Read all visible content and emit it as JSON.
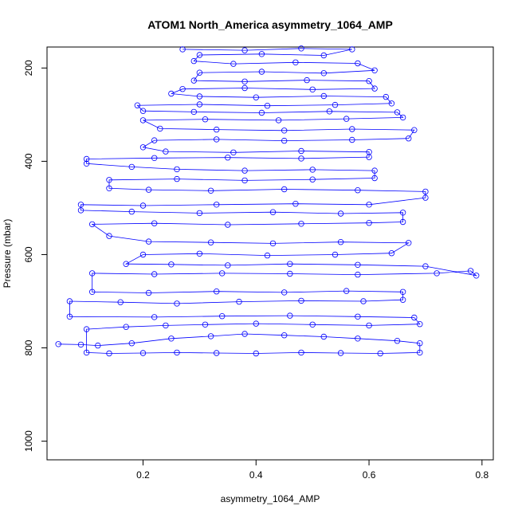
{
  "chart_data": {
    "type": "scatter",
    "title": "ATOM1 North_America asymmetry_1064_AMP",
    "xlabel": "asymmetry_1064_AMP",
    "ylabel": "Pressure (mbar)",
    "xlim": [
      0.03,
      0.82
    ],
    "ylim": [
      1040,
      155
    ],
    "y_reversed": true,
    "x_ticks": [
      0.2,
      0.4,
      0.6,
      0.8
    ],
    "x_tick_labels": [
      "0.2",
      "0.4",
      "0.6",
      "0.8"
    ],
    "y_ticks": [
      200,
      400,
      600,
      800,
      1000
    ],
    "y_tick_labels": [
      "200",
      "400",
      "600",
      "800",
      "1000"
    ],
    "grid": false,
    "legend": "none",
    "color": "#0000ff",
    "marker": "open-circle",
    "series": [
      {
        "points": [
          [
            0.05,
            792
          ],
          [
            0.09,
            793
          ],
          [
            0.12,
            795
          ],
          [
            0.18,
            790
          ],
          [
            0.25,
            780
          ],
          [
            0.32,
            775
          ],
          [
            0.38,
            770
          ],
          [
            0.45,
            773
          ],
          [
            0.52,
            776
          ],
          [
            0.58,
            780
          ],
          [
            0.65,
            785
          ],
          [
            0.69,
            790
          ],
          [
            0.69,
            810
          ],
          [
            0.62,
            812
          ],
          [
            0.55,
            811
          ],
          [
            0.48,
            810
          ],
          [
            0.4,
            812
          ],
          [
            0.33,
            811
          ],
          [
            0.26,
            810
          ],
          [
            0.2,
            811
          ],
          [
            0.14,
            812
          ],
          [
            0.1,
            810
          ],
          [
            0.1,
            760
          ],
          [
            0.17,
            755
          ],
          [
            0.24,
            752
          ],
          [
            0.31,
            750
          ],
          [
            0.4,
            748
          ],
          [
            0.5,
            750
          ],
          [
            0.6,
            752
          ],
          [
            0.69,
            749
          ],
          [
            0.68,
            735
          ],
          [
            0.58,
            733
          ],
          [
            0.46,
            731
          ],
          [
            0.34,
            732
          ],
          [
            0.22,
            734
          ],
          [
            0.07,
            733
          ],
          [
            0.07,
            700
          ],
          [
            0.16,
            702
          ],
          [
            0.26,
            705
          ],
          [
            0.37,
            701
          ],
          [
            0.48,
            699
          ],
          [
            0.59,
            700
          ],
          [
            0.66,
            697
          ],
          [
            0.66,
            680
          ],
          [
            0.56,
            678
          ],
          [
            0.45,
            681
          ],
          [
            0.33,
            679
          ],
          [
            0.21,
            682
          ],
          [
            0.11,
            680
          ],
          [
            0.11,
            640
          ],
          [
            0.22,
            642
          ],
          [
            0.34,
            640
          ],
          [
            0.46,
            641
          ],
          [
            0.58,
            643
          ],
          [
            0.72,
            640
          ],
          [
            0.78,
            635
          ],
          [
            0.79,
            645
          ],
          [
            0.7,
            625
          ],
          [
            0.58,
            622
          ],
          [
            0.46,
            620
          ],
          [
            0.35,
            623
          ],
          [
            0.25,
            621
          ],
          [
            0.17,
            620
          ],
          [
            0.2,
            600
          ],
          [
            0.3,
            598
          ],
          [
            0.42,
            602
          ],
          [
            0.54,
            600
          ],
          [
            0.64,
            597
          ],
          [
            0.67,
            575
          ],
          [
            0.55,
            573
          ],
          [
            0.43,
            576
          ],
          [
            0.32,
            574
          ],
          [
            0.21,
            572
          ],
          [
            0.14,
            560
          ],
          [
            0.11,
            535
          ],
          [
            0.22,
            533
          ],
          [
            0.35,
            536
          ],
          [
            0.48,
            534
          ],
          [
            0.6,
            532
          ],
          [
            0.66,
            530
          ],
          [
            0.66,
            510
          ],
          [
            0.55,
            512
          ],
          [
            0.43,
            509
          ],
          [
            0.3,
            511
          ],
          [
            0.18,
            508
          ],
          [
            0.09,
            505
          ],
          [
            0.09,
            493
          ],
          [
            0.2,
            495
          ],
          [
            0.33,
            493
          ],
          [
            0.47,
            491
          ],
          [
            0.6,
            493
          ],
          [
            0.7,
            478
          ],
          [
            0.7,
            465
          ],
          [
            0.58,
            462
          ],
          [
            0.45,
            460
          ],
          [
            0.32,
            463
          ],
          [
            0.21,
            461
          ],
          [
            0.14,
            458
          ],
          [
            0.14,
            440
          ],
          [
            0.26,
            438
          ],
          [
            0.38,
            441
          ],
          [
            0.5,
            439
          ],
          [
            0.61,
            436
          ],
          [
            0.61,
            420
          ],
          [
            0.5,
            418
          ],
          [
            0.38,
            420
          ],
          [
            0.26,
            417
          ],
          [
            0.18,
            412
          ],
          [
            0.1,
            405
          ],
          [
            0.1,
            395
          ],
          [
            0.22,
            393
          ],
          [
            0.35,
            392
          ],
          [
            0.48,
            394
          ],
          [
            0.6,
            391
          ],
          [
            0.6,
            380
          ],
          [
            0.48,
            378
          ],
          [
            0.36,
            381
          ],
          [
            0.24,
            379
          ],
          [
            0.2,
            370
          ],
          [
            0.22,
            355
          ],
          [
            0.33,
            353
          ],
          [
            0.45,
            356
          ],
          [
            0.57,
            354
          ],
          [
            0.67,
            351
          ],
          [
            0.68,
            333
          ],
          [
            0.57,
            331
          ],
          [
            0.45,
            334
          ],
          [
            0.33,
            332
          ],
          [
            0.23,
            330
          ],
          [
            0.2,
            312
          ],
          [
            0.31,
            310
          ],
          [
            0.44,
            312
          ],
          [
            0.56,
            309
          ],
          [
            0.66,
            306
          ],
          [
            0.65,
            295
          ],
          [
            0.53,
            293
          ],
          [
            0.41,
            296
          ],
          [
            0.29,
            294
          ],
          [
            0.2,
            292
          ],
          [
            0.19,
            280
          ],
          [
            0.3,
            278
          ],
          [
            0.42,
            281
          ],
          [
            0.54,
            279
          ],
          [
            0.64,
            276
          ],
          [
            0.63,
            262
          ],
          [
            0.52,
            260
          ],
          [
            0.4,
            263
          ],
          [
            0.3,
            261
          ],
          [
            0.25,
            255
          ],
          [
            0.27,
            245
          ],
          [
            0.38,
            243
          ],
          [
            0.5,
            246
          ],
          [
            0.61,
            244
          ],
          [
            0.6,
            228
          ],
          [
            0.49,
            226
          ],
          [
            0.38,
            229
          ],
          [
            0.29,
            227
          ],
          [
            0.3,
            210
          ],
          [
            0.41,
            208
          ],
          [
            0.52,
            211
          ],
          [
            0.61,
            205
          ],
          [
            0.58,
            190
          ],
          [
            0.47,
            188
          ],
          [
            0.36,
            191
          ],
          [
            0.29,
            185
          ],
          [
            0.3,
            172
          ],
          [
            0.41,
            170
          ],
          [
            0.52,
            173
          ],
          [
            0.57,
            160
          ],
          [
            0.48,
            158
          ],
          [
            0.38,
            162
          ],
          [
            0.27,
            160
          ]
        ]
      }
    ]
  }
}
